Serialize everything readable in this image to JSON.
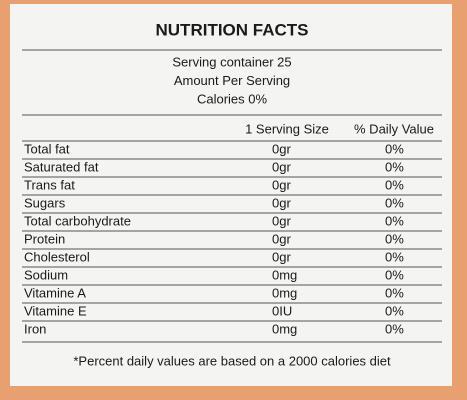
{
  "header": {
    "title": "NUTRITION FACTS"
  },
  "serving": {
    "lines": [
      "Serving container 25",
      "Amount Per Serving",
      "Calories 0%"
    ]
  },
  "table": {
    "columns": [
      "1 Serving Size",
      "% Daily Value"
    ],
    "rows": [
      [
        "Total fat",
        "0gr",
        "0%"
      ],
      [
        "Saturated fat",
        "0gr",
        "0%"
      ],
      [
        "Trans fat",
        "0gr",
        "0%"
      ],
      [
        "Sugars",
        "0gr",
        "0%"
      ],
      [
        "Total carbohydrate",
        "0gr",
        "0%"
      ],
      [
        "Protein",
        "0gr",
        "0%"
      ],
      [
        "Cholesterol",
        "0gr",
        "0%"
      ],
      [
        "Sodium",
        "0mg",
        "0%"
      ],
      [
        "Vitamine A",
        "0mg",
        "0%"
      ],
      [
        "Vitamine E",
        "0IU",
        "0%"
      ],
      [
        "Iron",
        "0mg",
        "0%"
      ]
    ]
  },
  "footnote": "*Percent daily values are based on a 2000 calories diet"
}
